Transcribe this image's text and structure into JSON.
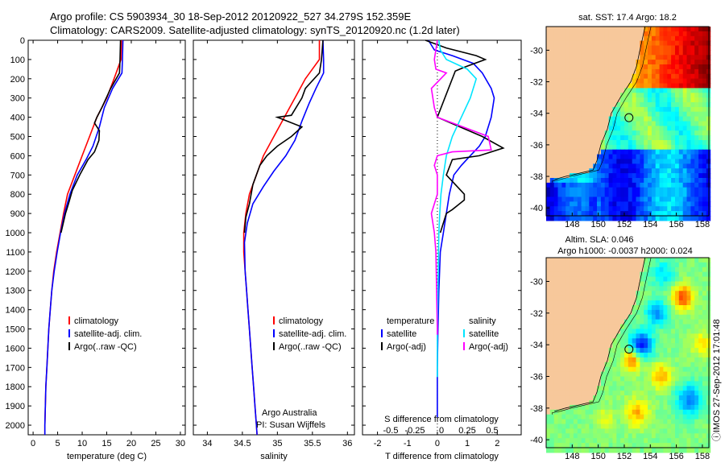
{
  "header": {
    "title_line1": "Argo profile: CS 5903934_30 18-Sep-2012 20120922_527 34.279S 152.359E",
    "title_line2": "Climatology: CARS2009. Satellite-adjusted climatology: synTS_20120920.nc (1.2d later)"
  },
  "colors": {
    "climatology": "#ff0000",
    "satellite": "#0000ff",
    "argo": "#000000",
    "sat_salinity": "#00e5ff",
    "argo_salinity": "#ff00ff",
    "land": "#f7c89b"
  },
  "chart_data": [
    {
      "type": "line",
      "name": "temperature-profile",
      "xlabel": "temperature (deg C)",
      "xlim": [
        -1,
        31
      ],
      "ylim": [
        2050,
        0
      ],
      "xticks": [
        "0",
        "5",
        "10",
        "15",
        "20",
        "25",
        "30"
      ],
      "yticks": [
        "0",
        "100",
        "200",
        "300",
        "400",
        "500",
        "600",
        "700",
        "800",
        "900",
        "1000",
        "1100",
        "1200",
        "1300",
        "1400",
        "1500",
        "1600",
        "1700",
        "1800",
        "1900",
        "2000"
      ],
      "legend": [
        "climatology",
        "satellite-adj. clim.",
        "Argo(..raw -QC)"
      ],
      "series": [
        {
          "name": "climatology",
          "color": "#ff0000",
          "points": [
            [
              18,
              0
            ],
            [
              17.9,
              100
            ],
            [
              16.5,
              200
            ],
            [
              15,
              300
            ],
            [
              13,
              400
            ],
            [
              11.5,
              500
            ],
            [
              10,
              600
            ],
            [
              8.5,
              700
            ],
            [
              7,
              800
            ],
            [
              6.2,
              900
            ],
            [
              5.5,
              1000
            ],
            [
              4.8,
              1100
            ],
            [
              4.2,
              1200
            ],
            [
              3.8,
              1300
            ],
            [
              3.5,
              1400
            ],
            [
              3.2,
              1500
            ],
            [
              3,
              1600
            ],
            [
              2.8,
              1700
            ],
            [
              2.6,
              1800
            ],
            [
              2.5,
              1900
            ],
            [
              2.4,
              2000
            ],
            [
              2.4,
              2050
            ]
          ]
        },
        {
          "name": "satellite-adj. clim.",
          "color": "#0000ff",
          "points": [
            [
              18.3,
              0
            ],
            [
              18.2,
              100
            ],
            [
              18.1,
              170
            ],
            [
              16.2,
              250
            ],
            [
              14.5,
              350
            ],
            [
              13.5,
              450
            ],
            [
              12.2,
              550
            ],
            [
              10.8,
              620
            ],
            [
              9,
              700
            ],
            [
              7.5,
              800
            ],
            [
              6.4,
              900
            ],
            [
              5.6,
              1000
            ],
            [
              4.9,
              1100
            ],
            [
              4.3,
              1200
            ],
            [
              3.8,
              1300
            ],
            [
              3.5,
              1400
            ],
            [
              3.2,
              1500
            ],
            [
              3,
              1600
            ],
            [
              2.8,
              1700
            ],
            [
              2.6,
              1800
            ],
            [
              2.5,
              1900
            ],
            [
              2.4,
              2000
            ],
            [
              2.4,
              2050
            ]
          ]
        },
        {
          "name": "Argo(..raw -QC)",
          "color": "#000000",
          "points": [
            [
              17.8,
              0
            ],
            [
              17.7,
              100
            ],
            [
              17.6,
              170
            ],
            [
              15.8,
              250
            ],
            [
              14,
              350
            ],
            [
              13,
              400
            ],
            [
              12.5,
              430
            ],
            [
              13.5,
              470
            ],
            [
              13.4,
              520
            ],
            [
              12.5,
              580
            ],
            [
              11.2,
              620
            ],
            [
              9.5,
              700
            ],
            [
              8,
              780
            ],
            [
              7.2,
              850
            ],
            [
              6.6,
              900
            ],
            [
              5.7,
              1000
            ]
          ]
        }
      ]
    },
    {
      "type": "line",
      "name": "salinity-profile",
      "xlabel": "salinity",
      "xlim": [
        33.8,
        36.1
      ],
      "ylim": [
        2050,
        0
      ],
      "xticks": [
        "34",
        "34.5",
        "35",
        "35.5",
        "36"
      ],
      "legend": [
        "climatology",
        "satellite-adj. clim.",
        "Argo(..raw -QC)"
      ],
      "annotation": [
        "Argo Australia",
        "PI: Susan Wijffels"
      ],
      "series": [
        {
          "name": "climatology",
          "color": "#ff0000",
          "points": [
            [
              35.6,
              0
            ],
            [
              35.6,
              100
            ],
            [
              35.4,
              200
            ],
            [
              35.25,
              300
            ],
            [
              35.1,
              400
            ],
            [
              34.95,
              500
            ],
            [
              34.8,
              600
            ],
            [
              34.7,
              700
            ],
            [
              34.6,
              800
            ],
            [
              34.55,
              900
            ],
            [
              34.52,
              1000
            ],
            [
              34.52,
              1100
            ],
            [
              34.54,
              1200
            ],
            [
              34.56,
              1300
            ],
            [
              34.58,
              1400
            ],
            [
              34.6,
              1500
            ],
            [
              34.62,
              1600
            ],
            [
              34.64,
              1700
            ],
            [
              34.66,
              1800
            ],
            [
              34.68,
              1900
            ],
            [
              34.7,
              2000
            ],
            [
              34.71,
              2050
            ]
          ]
        },
        {
          "name": "satellite-adj. clim.",
          "color": "#0000ff",
          "points": [
            [
              35.65,
              0
            ],
            [
              35.66,
              100
            ],
            [
              35.66,
              170
            ],
            [
              35.55,
              250
            ],
            [
              35.45,
              330
            ],
            [
              35.35,
              420
            ],
            [
              35.25,
              520
            ],
            [
              35.12,
              600
            ],
            [
              34.95,
              680
            ],
            [
              34.8,
              760
            ],
            [
              34.65,
              850
            ],
            [
              34.57,
              950
            ],
            [
              34.53,
              1050
            ],
            [
              34.54,
              1200
            ],
            [
              34.56,
              1300
            ],
            [
              34.58,
              1400
            ],
            [
              34.6,
              1500
            ],
            [
              34.62,
              1600
            ],
            [
              34.64,
              1700
            ],
            [
              34.66,
              1800
            ],
            [
              34.68,
              1900
            ],
            [
              34.7,
              2000
            ],
            [
              34.71,
              2050
            ]
          ]
        },
        {
          "name": "Argo(..raw -QC)",
          "color": "#000000",
          "points": [
            [
              35.65,
              0
            ],
            [
              35.63,
              100
            ],
            [
              35.6,
              170
            ],
            [
              35.4,
              250
            ],
            [
              35.35,
              300
            ],
            [
              35.2,
              390
            ],
            [
              35.0,
              400
            ],
            [
              35.35,
              450
            ],
            [
              35.2,
              500
            ],
            [
              35.0,
              550
            ],
            [
              34.85,
              600
            ],
            [
              34.75,
              650
            ],
            [
              34.65,
              750
            ],
            [
              34.6,
              850
            ],
            [
              34.55,
              920
            ],
            [
              34.53,
              1000
            ]
          ]
        }
      ]
    },
    {
      "type": "line",
      "name": "difference-profile",
      "xlabel": "T difference from climatology",
      "toplabel": "S difference from climatology",
      "xlim": [
        -2.5,
        2.8
      ],
      "ylim": [
        2050,
        0
      ],
      "xticks": [
        "-2",
        "-1",
        "0",
        "1",
        "2"
      ],
      "sticks": [
        "-0.5",
        "-0.25",
        "0",
        "0.25",
        "0.5"
      ],
      "legend_headers": [
        "temperature",
        "salinity"
      ],
      "legend": [
        "satellite",
        "Argo(-adj)",
        "satellite",
        "Argo(-adj)"
      ],
      "series": [
        {
          "name": "temperature satellite",
          "color": "#0000ff",
          "points": [
            [
              -0.3,
              0
            ],
            [
              -0.1,
              50
            ],
            [
              0.5,
              80
            ],
            [
              1.2,
              120
            ],
            [
              1.5,
              170
            ],
            [
              1.8,
              250
            ],
            [
              1.9,
              300
            ],
            [
              1.8,
              400
            ],
            [
              1.6,
              500
            ],
            [
              1.4,
              550
            ],
            [
              1.1,
              600
            ],
            [
              0.8,
              650
            ],
            [
              0.55,
              700
            ],
            [
              0.4,
              800
            ],
            [
              0.3,
              900
            ],
            [
              0.2,
              1000
            ],
            [
              0.1,
              1100
            ],
            [
              0.05,
              1300
            ],
            [
              0.02,
              1500
            ],
            [
              0,
              1700
            ],
            [
              0,
              1900
            ],
            [
              0,
              1960
            ]
          ]
        },
        {
          "name": "temperature Argo(-adj)",
          "color": "#000000",
          "points": [
            [
              -0.4,
              0
            ],
            [
              0.3,
              40
            ],
            [
              1.3,
              80
            ],
            [
              1.6,
              100
            ],
            [
              0.9,
              140
            ],
            [
              0.6,
              160
            ],
            [
              0.0,
              400
            ],
            [
              1.5,
              500
            ],
            [
              2.2,
              560
            ],
            [
              1.4,
              600
            ],
            [
              0.5,
              620
            ],
            [
              0.3,
              700
            ],
            [
              0.9,
              800
            ],
            [
              0.9,
              830
            ],
            [
              0.5,
              880
            ],
            [
              0.3,
              900
            ],
            [
              0.1,
              1000
            ]
          ]
        },
        {
          "name": "salinity satellite",
          "color": "#00e5ff",
          "points": [
            [
              0.05,
              0
            ],
            [
              0.1,
              50
            ],
            [
              0.3,
              100
            ],
            [
              1.0,
              150
            ],
            [
              1.3,
              200
            ],
            [
              1.1,
              300
            ],
            [
              0.8,
              400
            ],
            [
              0.5,
              500
            ],
            [
              0.3,
              600
            ],
            [
              0.2,
              700
            ],
            [
              0.12,
              800
            ],
            [
              0.08,
              900
            ],
            [
              0.05,
              1000
            ],
            [
              0.03,
              1200
            ],
            [
              0,
              1500
            ],
            [
              0,
              1750
            ]
          ]
        },
        {
          "name": "salinity Argo(-adj)",
          "color": "#ff00ff",
          "points": [
            [
              0.0,
              0
            ],
            [
              -0.1,
              100
            ],
            [
              -0.05,
              150
            ],
            [
              0.3,
              170
            ],
            [
              -0.2,
              250
            ],
            [
              -0.1,
              350
            ],
            [
              0.0,
              400
            ],
            [
              1.7,
              500
            ],
            [
              1.8,
              570
            ],
            [
              0.5,
              580
            ],
            [
              0.0,
              600
            ],
            [
              -0.1,
              650
            ],
            [
              0.0,
              700
            ],
            [
              0.0,
              800
            ],
            [
              -0.2,
              900
            ],
            [
              -0.1,
              1000
            ],
            [
              -0.05,
              1100
            ],
            [
              0,
              1500
            ],
            [
              0,
              1530
            ]
          ]
        }
      ]
    },
    {
      "type": "heatmap",
      "name": "sst-map",
      "title": "sat. SST: 17.4  Argo: 18.2",
      "xlim": [
        146,
        158.5
      ],
      "ylim": [
        -40.5,
        -28.5
      ],
      "xticks": [
        "148",
        "150",
        "152",
        "154",
        "156",
        "158"
      ],
      "yticks": [
        "-30",
        "-32",
        "-34",
        "-36",
        "-38",
        "-40"
      ],
      "argo_position": [
        152.359,
        -34.279
      ]
    },
    {
      "type": "heatmap",
      "name": "sla-map",
      "title_line1": "Altim. SLA: 0.046",
      "title_line2": "Argo h1000: -0.0037 h2000: 0.024",
      "xlim": [
        146,
        158.5
      ],
      "ylim": [
        -40.5,
        -28.5
      ],
      "xticks": [
        "148",
        "150",
        "152",
        "154",
        "156",
        "158"
      ],
      "yticks": [
        "-30",
        "-32",
        "-34",
        "-36",
        "-38",
        "-40"
      ],
      "argo_position": [
        152.359,
        -34.279
      ]
    }
  ],
  "watermark": "ⓘIMOS 27-Sep-2012 17:01:48"
}
